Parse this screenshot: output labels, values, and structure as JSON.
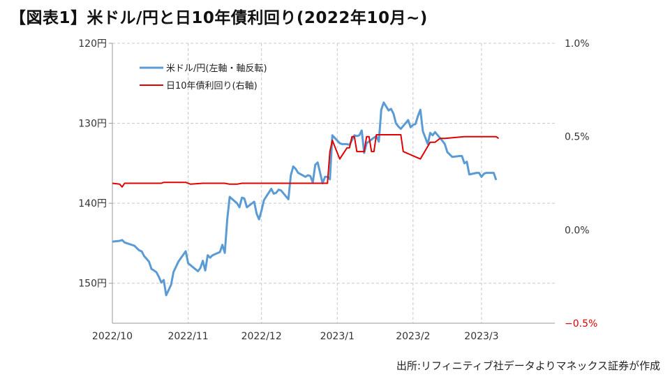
{
  "page": {
    "title": "【図表1】米ドル/円と日10年債利回り(2022年10月~)",
    "source": "出所:リフィニティブ社データよりマネックス証券が作成"
  },
  "chart_data": {
    "type": "line",
    "grid": true,
    "legend_position": "top-left",
    "x_ticks": [
      "2022/10",
      "2022/11",
      "2022/12",
      "2023/1",
      "2023/2",
      "2023/3"
    ],
    "x_tick_dates": [
      "2022-10-01",
      "2022-11-01",
      "2022-12-01",
      "2023-01-01",
      "2023-02-01",
      "2023-03-01"
    ],
    "x_range": [
      "2022-10-01",
      "2023-03-31"
    ],
    "y_left": {
      "range": [
        120,
        155
      ],
      "inverted": true,
      "ticks": [
        120,
        130,
        140,
        150
      ],
      "tick_labels": [
        "120円",
        "130円",
        "140円",
        "150円"
      ]
    },
    "y_right": {
      "range": [
        -0.5,
        1.0
      ],
      "inverted": false,
      "ticks": [
        1.0,
        0.5,
        0.0,
        -0.5
      ],
      "tick_labels": [
        "1.0%",
        "0.5%",
        "0.0%",
        "−0.5%"
      ],
      "highlight_color": "#e00000"
    },
    "series": [
      {
        "name": "米ドル/円(左軸・軸反転)",
        "axis": "left",
        "color": "#5b9bd5",
        "points": [
          [
            "2022-10-01",
            144.8
          ],
          [
            "2022-10-04",
            144.7
          ],
          [
            "2022-10-05",
            144.6
          ],
          [
            "2022-10-06",
            144.9
          ],
          [
            "2022-10-07",
            145.0
          ],
          [
            "2022-10-10",
            145.3
          ],
          [
            "2022-10-11",
            145.6
          ],
          [
            "2022-10-12",
            145.9
          ],
          [
            "2022-10-13",
            146.0
          ],
          [
            "2022-10-14",
            146.6
          ],
          [
            "2022-10-16",
            147.3
          ],
          [
            "2022-10-17",
            148.2
          ],
          [
            "2022-10-18",
            148.4
          ],
          [
            "2022-10-19",
            148.6
          ],
          [
            "2022-10-20",
            149.2
          ],
          [
            "2022-10-21",
            149.9
          ],
          [
            "2022-10-22",
            149.6
          ],
          [
            "2022-10-23",
            151.5
          ],
          [
            "2022-10-25",
            150.2
          ],
          [
            "2022-10-26",
            148.6
          ],
          [
            "2022-10-28",
            147.3
          ],
          [
            "2022-10-31",
            146.0
          ],
          [
            "2022-11-01",
            147.5
          ],
          [
            "2022-11-03",
            148.0
          ],
          [
            "2022-11-05",
            148.5
          ],
          [
            "2022-11-06",
            148.1
          ],
          [
            "2022-11-07",
            147.2
          ],
          [
            "2022-11-08",
            148.4
          ],
          [
            "2022-11-09",
            146.5
          ],
          [
            "2022-11-10",
            146.8
          ],
          [
            "2022-11-11",
            146.5
          ],
          [
            "2022-11-14",
            146.1
          ],
          [
            "2022-11-15",
            145.2
          ],
          [
            "2022-11-16",
            146.2
          ],
          [
            "2022-11-17",
            142.0
          ],
          [
            "2022-11-18",
            139.2
          ],
          [
            "2022-11-21",
            140.0
          ],
          [
            "2022-11-22",
            140.5
          ],
          [
            "2022-11-23",
            139.3
          ],
          [
            "2022-11-24",
            139.4
          ],
          [
            "2022-11-25",
            140.5
          ],
          [
            "2022-11-28",
            139.8
          ],
          [
            "2022-11-29",
            141.3
          ],
          [
            "2022-11-30",
            142.0
          ],
          [
            "2022-12-01",
            140.9
          ],
          [
            "2022-12-02",
            139.6
          ],
          [
            "2022-12-05",
            138.2
          ],
          [
            "2022-12-06",
            138.8
          ],
          [
            "2022-12-07",
            138.7
          ],
          [
            "2022-12-08",
            138.3
          ],
          [
            "2022-12-09",
            138.4
          ],
          [
            "2022-12-12",
            139.5
          ],
          [
            "2022-12-13",
            136.5
          ],
          [
            "2022-12-14",
            135.4
          ],
          [
            "2022-12-15",
            135.7
          ],
          [
            "2022-12-16",
            136.2
          ],
          [
            "2022-12-19",
            136.7
          ],
          [
            "2022-12-20",
            136.5
          ],
          [
            "2022-12-21",
            136.6
          ],
          [
            "2022-12-22",
            137.4
          ],
          [
            "2022-12-23",
            135.2
          ],
          [
            "2022-12-24",
            134.9
          ],
          [
            "2022-12-26",
            137.5
          ],
          [
            "2022-12-27",
            136.7
          ],
          [
            "2022-12-28",
            136.7
          ],
          [
            "2022-12-29",
            137.0
          ],
          [
            "2022-12-30",
            131.5
          ],
          [
            "2023-01-02",
            132.5
          ],
          [
            "2023-01-03",
            132.6
          ],
          [
            "2023-01-04",
            132.6
          ],
          [
            "2023-01-05",
            132.6
          ],
          [
            "2023-01-06",
            132.7
          ],
          [
            "2023-01-08",
            131.5
          ],
          [
            "2023-01-09",
            131.6
          ],
          [
            "2023-01-10",
            131.5
          ],
          [
            "2023-01-11",
            130.9
          ],
          [
            "2023-01-12",
            133.7
          ],
          [
            "2023-01-13",
            132.5
          ],
          [
            "2023-01-16",
            131.8
          ],
          [
            "2023-01-17",
            131.6
          ],
          [
            "2023-01-18",
            132.3
          ],
          [
            "2023-01-19",
            128.3
          ],
          [
            "2023-01-20",
            127.4
          ],
          [
            "2023-01-22",
            128.4
          ],
          [
            "2023-01-23",
            128.2
          ],
          [
            "2023-01-24",
            128.8
          ],
          [
            "2023-01-25",
            130.0
          ],
          [
            "2023-01-26",
            130.4
          ],
          [
            "2023-01-27",
            130.7
          ],
          [
            "2023-01-30",
            129.6
          ],
          [
            "2023-01-31",
            130.5
          ],
          [
            "2023-02-01",
            130.2
          ],
          [
            "2023-02-02",
            130.1
          ],
          [
            "2023-02-03",
            129.1
          ],
          [
            "2023-02-04",
            128.3
          ],
          [
            "2023-02-05",
            131.0
          ],
          [
            "2023-02-06",
            131.8
          ],
          [
            "2023-02-07",
            132.6
          ],
          [
            "2023-02-08",
            131.2
          ],
          [
            "2023-02-09",
            131.5
          ],
          [
            "2023-02-10",
            131.1
          ],
          [
            "2023-02-13",
            132.2
          ],
          [
            "2023-02-14",
            132.6
          ],
          [
            "2023-02-15",
            133.6
          ],
          [
            "2023-02-17",
            134.2
          ],
          [
            "2023-02-20",
            134.1
          ],
          [
            "2023-02-21",
            134.1
          ],
          [
            "2023-02-22",
            135.0
          ],
          [
            "2023-02-23",
            134.8
          ],
          [
            "2023-02-24",
            136.4
          ],
          [
            "2023-02-27",
            136.2
          ],
          [
            "2023-02-28",
            136.2
          ],
          [
            "2023-03-01",
            136.7
          ],
          [
            "2023-03-02",
            136.3
          ],
          [
            "2023-03-03",
            136.2
          ],
          [
            "2023-03-06",
            136.2
          ],
          [
            "2023-03-07",
            137.1
          ]
        ]
      },
      {
        "name": "日10年債利回り(右軸)",
        "axis": "right",
        "color": "#e00000",
        "points": [
          [
            "2022-10-01",
            0.25
          ],
          [
            "2022-10-04",
            0.245
          ],
          [
            "2022-10-05",
            0.23
          ],
          [
            "2022-10-06",
            0.25
          ],
          [
            "2022-10-21",
            0.25
          ],
          [
            "2022-10-22",
            0.255
          ],
          [
            "2022-10-31",
            0.255
          ],
          [
            "2022-11-02",
            0.245
          ],
          [
            "2022-11-07",
            0.25
          ],
          [
            "2022-11-16",
            0.25
          ],
          [
            "2022-11-18",
            0.245
          ],
          [
            "2022-11-21",
            0.245
          ],
          [
            "2022-11-23",
            0.25
          ],
          [
            "2022-12-19",
            0.25
          ],
          [
            "2022-12-20",
            0.25
          ],
          [
            "2022-12-28",
            0.25
          ],
          [
            "2022-12-29",
            0.42
          ],
          [
            "2022-12-30",
            0.48
          ],
          [
            "2023-01-02",
            0.38
          ],
          [
            "2023-01-05",
            0.44
          ],
          [
            "2023-01-06",
            0.44
          ],
          [
            "2023-01-07",
            0.5
          ],
          [
            "2023-01-08",
            0.5
          ],
          [
            "2023-01-09",
            0.42
          ],
          [
            "2023-01-11",
            0.42
          ],
          [
            "2023-01-12",
            0.42
          ],
          [
            "2023-01-13",
            0.5
          ],
          [
            "2023-01-14",
            0.5
          ],
          [
            "2023-01-15",
            0.42
          ],
          [
            "2023-01-16",
            0.42
          ],
          [
            "2023-01-17",
            0.51
          ],
          [
            "2023-01-18",
            0.51
          ],
          [
            "2023-01-27",
            0.51
          ],
          [
            "2023-01-28",
            0.42
          ],
          [
            "2023-02-04",
            0.38
          ],
          [
            "2023-02-08",
            0.47
          ],
          [
            "2023-02-10",
            0.47
          ],
          [
            "2023-02-11",
            0.48
          ],
          [
            "2023-02-12",
            0.49
          ],
          [
            "2023-02-13",
            0.49
          ],
          [
            "2023-02-14",
            0.49
          ],
          [
            "2023-02-22",
            0.5
          ],
          [
            "2023-02-28",
            0.5
          ],
          [
            "2023-03-07",
            0.5
          ],
          [
            "2023-03-08",
            0.49
          ]
        ]
      }
    ]
  }
}
